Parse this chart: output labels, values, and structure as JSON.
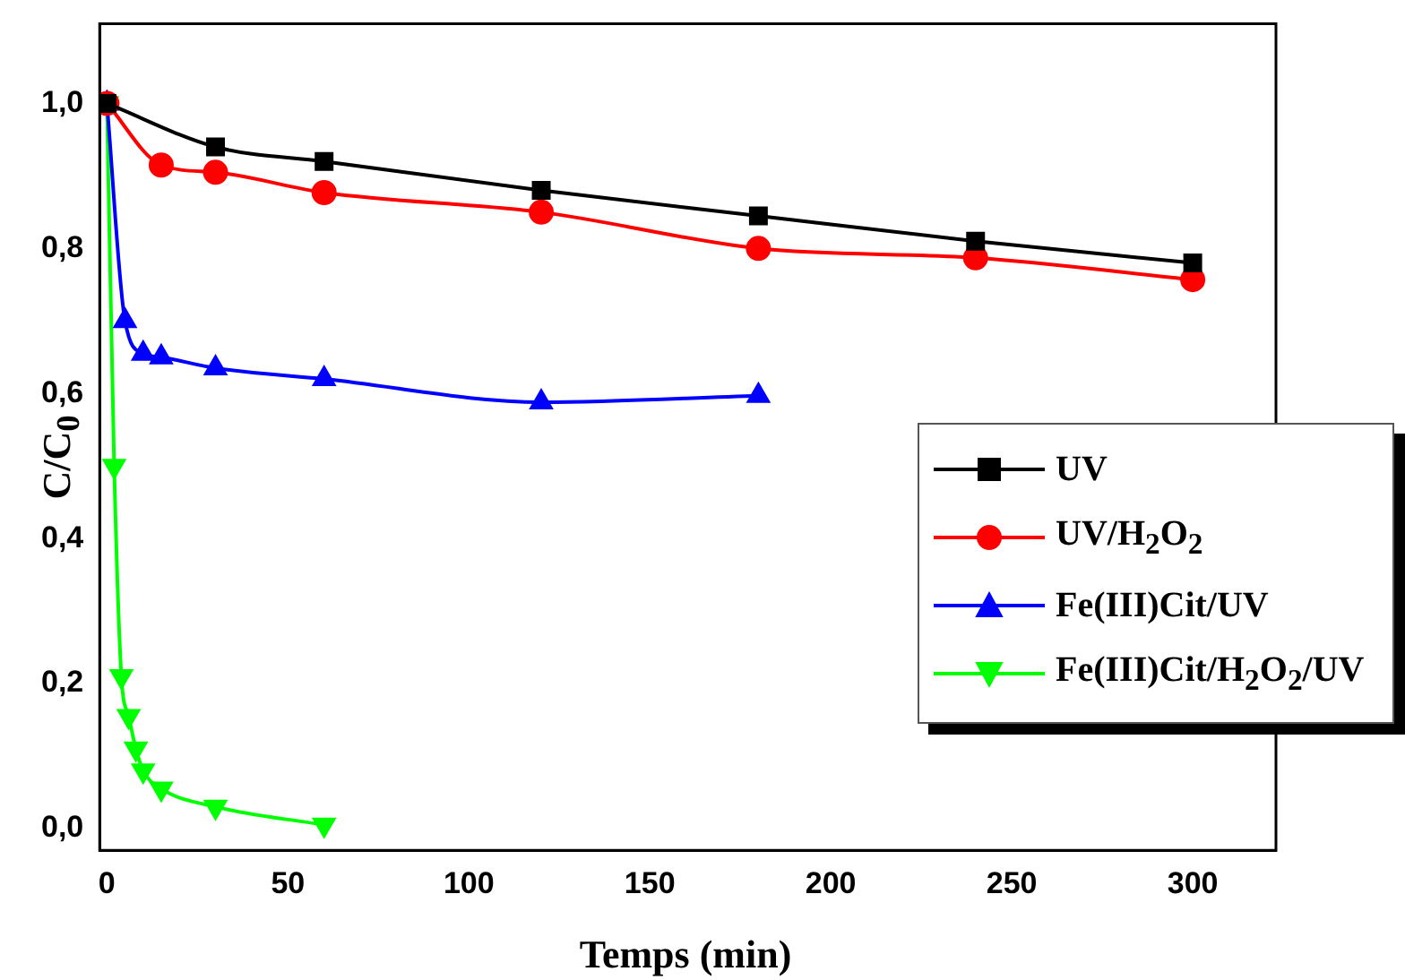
{
  "chart_data": {
    "type": "line",
    "xlabel": "Temps (min)",
    "ylabel": "C/C$_{0}$",
    "xlim": [
      -2,
      323
    ],
    "xticks": [
      0,
      50,
      100,
      150,
      200,
      250,
      300
    ],
    "ylim": [
      -0.03,
      1.11
    ],
    "yticks": [
      {
        "value": 0,
        "label": "0,0"
      },
      {
        "value": 0.2,
        "label": "0,2"
      },
      {
        "value": 0.4,
        "label": "0,4"
      },
      {
        "value": 0.6,
        "label": "0,6"
      },
      {
        "value": 0.8,
        "label": "0,8"
      },
      {
        "value": 1,
        "label": "1,0"
      }
    ],
    "grid": false,
    "legend": "right",
    "line_style": "solid",
    "series": [
      {
        "name": "UV",
        "color": "#000000",
        "marker": "square",
        "x": [
          0,
          30,
          60,
          120,
          180,
          240,
          300
        ],
        "values": [
          1,
          0.94,
          0.92,
          0.88,
          0.845,
          0.81,
          0.78
        ]
      },
      {
        "name": "UV/H$_{2}$O$_{2}$",
        "color": "#ff0000",
        "marker": "circle",
        "x": [
          0,
          15,
          30,
          60,
          120,
          180,
          240,
          300
        ],
        "values": [
          1,
          0.915,
          0.905,
          0.877,
          0.85,
          0.8,
          0.787,
          0.757
        ]
      },
      {
        "name": "Fe(III)Cit/UV",
        "color": "#0000ff",
        "marker": "triangle",
        "x": [
          0,
          5,
          10,
          15,
          30,
          60,
          120,
          180
        ],
        "values": [
          1,
          0.7,
          0.655,
          0.65,
          0.635,
          0.62,
          0.588,
          0.597
        ]
      },
      {
        "name": "Fe(III)Cit/H$_{2}$O$_{2}$/UV",
        "color": "#00ff00",
        "marker": "triangle_down",
        "x": [
          0,
          2,
          4,
          6,
          8,
          10,
          15,
          30,
          60
        ],
        "values": [
          1,
          0.5,
          0.21,
          0.155,
          0.11,
          0.08,
          0.055,
          0.03,
          0.005
        ]
      }
    ]
  }
}
